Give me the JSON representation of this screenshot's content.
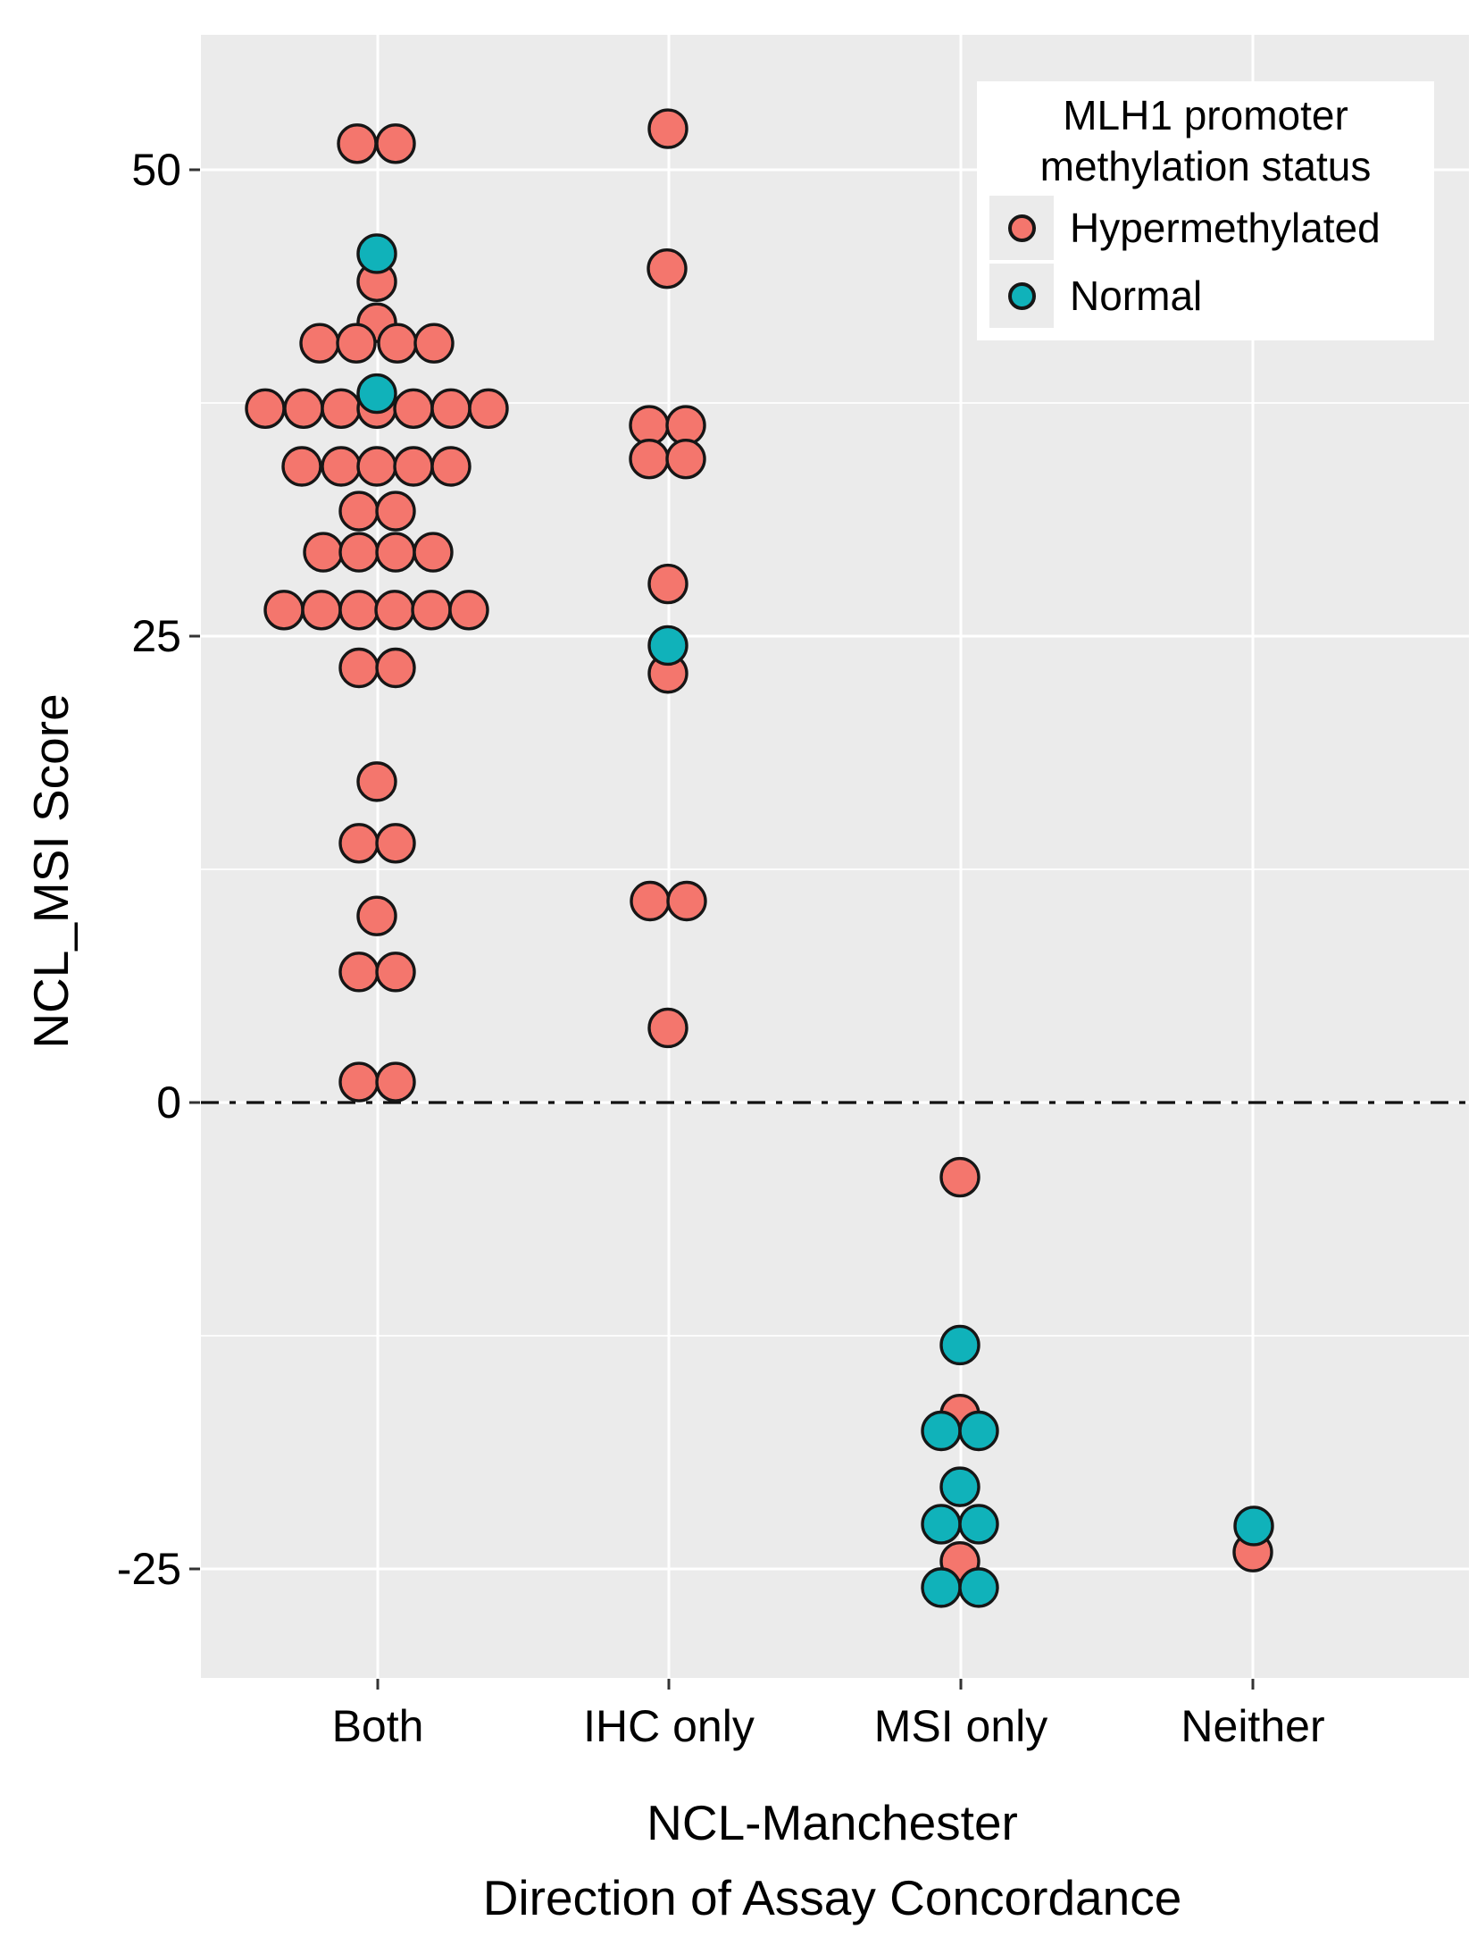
{
  "figure": {
    "y_axis": {
      "title": "NCL_MSI Score",
      "ticks": [
        50,
        25,
        0,
        -25
      ]
    },
    "x_axis": {
      "title_line1": "NCL-Manchester",
      "title_line2": "Direction of Assay Concordance",
      "categories": [
        "Both",
        "IHC only",
        "MSI only",
        "Neither"
      ]
    },
    "legend": {
      "title_line1": "MLH1 promoter",
      "title_line2": "methylation status",
      "entries": [
        {
          "label": "Hypermethylated",
          "color": "#f4766d"
        },
        {
          "label": "Normal",
          "color": "#10b2ba"
        }
      ]
    },
    "colors": {
      "panel_bg": "#ebebeb",
      "gridline": "#ffffff",
      "point_outline": "#161616",
      "zero_line": "#111111",
      "tick": "#333333",
      "text": "#000000"
    }
  },
  "chart_data": {
    "type": "scatter",
    "subtype": "dot-plot-beeswarm",
    "title": "",
    "xlabel": "NCL-Manchester Direction of Assay Concordance",
    "ylabel": "NCL_MSI Score",
    "categories": [
      "Both",
      "IHC only",
      "MSI only",
      "Neither"
    ],
    "yticks": [
      50,
      25,
      0,
      -25
    ],
    "yticks_minor": [
      37.5,
      12.5,
      -12.5
    ],
    "ylim": [
      -30.8,
      57.2
    ],
    "grid": true,
    "zero_reference_line": true,
    "legend_position": "top-right-inside",
    "series": [
      {
        "name": "Hypermethylated",
        "color": "#f4766d",
        "points": [
          {
            "cat": "Both",
            "value": 51.4,
            "dx": -23
          },
          {
            "cat": "Both",
            "value": 51.4,
            "dx": 20
          },
          {
            "cat": "Both",
            "value": 44.0,
            "dx": -1
          },
          {
            "cat": "Both",
            "value": 41.8,
            "dx": -1
          },
          {
            "cat": "Both",
            "value": 40.7,
            "dx": -65
          },
          {
            "cat": "Both",
            "value": 40.7,
            "dx": -24
          },
          {
            "cat": "Both",
            "value": 40.7,
            "dx": 22
          },
          {
            "cat": "Both",
            "value": 40.7,
            "dx": 63
          },
          {
            "cat": "Both",
            "value": 37.2,
            "dx": -126
          },
          {
            "cat": "Both",
            "value": 37.2,
            "dx": -83
          },
          {
            "cat": "Both",
            "value": 37.2,
            "dx": -41
          },
          {
            "cat": "Both",
            "value": 37.2,
            "dx": -1
          },
          {
            "cat": "Both",
            "value": 37.2,
            "dx": 40
          },
          {
            "cat": "Both",
            "value": 37.2,
            "dx": 82
          },
          {
            "cat": "Both",
            "value": 37.2,
            "dx": 124
          },
          {
            "cat": "Both",
            "value": 34.1,
            "dx": -85
          },
          {
            "cat": "Both",
            "value": 34.1,
            "dx": -41
          },
          {
            "cat": "Both",
            "value": 34.1,
            "dx": -1
          },
          {
            "cat": "Both",
            "value": 34.1,
            "dx": 40
          },
          {
            "cat": "Both",
            "value": 34.1,
            "dx": 82
          },
          {
            "cat": "Both",
            "value": 31.7,
            "dx": -21
          },
          {
            "cat": "Both",
            "value": 31.7,
            "dx": 20
          },
          {
            "cat": "Both",
            "value": 29.5,
            "dx": -61
          },
          {
            "cat": "Both",
            "value": 29.5,
            "dx": -21
          },
          {
            "cat": "Both",
            "value": 29.5,
            "dx": 20
          },
          {
            "cat": "Both",
            "value": 29.5,
            "dx": 62
          },
          {
            "cat": "Both",
            "value": 26.4,
            "dx": -105
          },
          {
            "cat": "Both",
            "value": 26.4,
            "dx": -63
          },
          {
            "cat": "Both",
            "value": 26.4,
            "dx": -21
          },
          {
            "cat": "Both",
            "value": 26.4,
            "dx": 19
          },
          {
            "cat": "Both",
            "value": 26.4,
            "dx": 60
          },
          {
            "cat": "Both",
            "value": 26.4,
            "dx": 102
          },
          {
            "cat": "Both",
            "value": 23.3,
            "dx": -21
          },
          {
            "cat": "Both",
            "value": 23.3,
            "dx": 20
          },
          {
            "cat": "Both",
            "value": 17.2,
            "dx": -1
          },
          {
            "cat": "Both",
            "value": 13.9,
            "dx": -21
          },
          {
            "cat": "Both",
            "value": 13.9,
            "dx": 20
          },
          {
            "cat": "Both",
            "value": 10.0,
            "dx": -1
          },
          {
            "cat": "Both",
            "value": 7.0,
            "dx": -21
          },
          {
            "cat": "Both",
            "value": 7.0,
            "dx": 20
          },
          {
            "cat": "Both",
            "value": 1.1,
            "dx": -21
          },
          {
            "cat": "Both",
            "value": 1.1,
            "dx": 20
          },
          {
            "cat": "IHC only",
            "value": 52.2,
            "dx": -1
          },
          {
            "cat": "IHC only",
            "value": 44.7,
            "dx": -2
          },
          {
            "cat": "IHC only",
            "value": 36.3,
            "dx": -22
          },
          {
            "cat": "IHC only",
            "value": 36.3,
            "dx": 19
          },
          {
            "cat": "IHC only",
            "value": 34.5,
            "dx": -22
          },
          {
            "cat": "IHC only",
            "value": 34.5,
            "dx": 19
          },
          {
            "cat": "IHC only",
            "value": 27.8,
            "dx": -1
          },
          {
            "cat": "IHC only",
            "value": 23.0,
            "dx": -1
          },
          {
            "cat": "IHC only",
            "value": 10.8,
            "dx": -21
          },
          {
            "cat": "IHC only",
            "value": 10.8,
            "dx": 20
          },
          {
            "cat": "IHC only",
            "value": 4.0,
            "dx": -1
          },
          {
            "cat": "MSI only",
            "value": -4.0,
            "dx": -1
          },
          {
            "cat": "MSI only",
            "value": -16.7,
            "dx": -1
          },
          {
            "cat": "MSI only",
            "value": -24.6,
            "dx": -1
          },
          {
            "cat": "Neither",
            "value": -24.1,
            "dx": 0
          }
        ]
      },
      {
        "name": "Normal",
        "color": "#10b2ba",
        "points": [
          {
            "cat": "Both",
            "value": 45.5,
            "dx": -1
          },
          {
            "cat": "Both",
            "value": 38.0,
            "dx": -1
          },
          {
            "cat": "IHC only",
            "value": 24.5,
            "dx": -1
          },
          {
            "cat": "MSI only",
            "value": -13.0,
            "dx": -1
          },
          {
            "cat": "MSI only",
            "value": -17.6,
            "dx": -22
          },
          {
            "cat": "MSI only",
            "value": -17.6,
            "dx": 20
          },
          {
            "cat": "MSI only",
            "value": -20.6,
            "dx": -1
          },
          {
            "cat": "MSI only",
            "value": -22.6,
            "dx": -22
          },
          {
            "cat": "MSI only",
            "value": -22.6,
            "dx": 20
          },
          {
            "cat": "MSI only",
            "value": -26.0,
            "dx": -22
          },
          {
            "cat": "MSI only",
            "value": -26.0,
            "dx": 20
          },
          {
            "cat": "Neither",
            "value": -22.7,
            "dx": 1
          }
        ]
      }
    ]
  }
}
